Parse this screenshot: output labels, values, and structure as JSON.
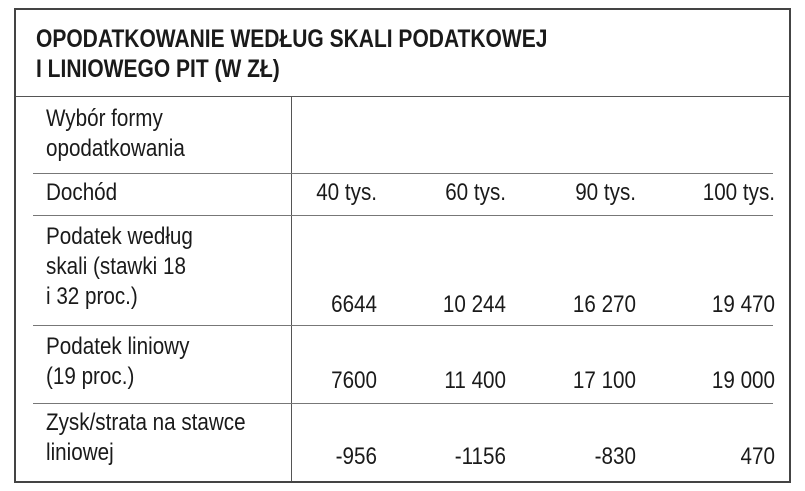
{
  "title": {
    "line1": "OPODATKOWANIE WEDŁUG SKALI PODATKOWEJ",
    "line2": "I LINIOWEGO PIT (W ZŁ)"
  },
  "rows": [
    {
      "label": "Wybór formy\nopodatkowania",
      "values": []
    },
    {
      "label": "Dochód",
      "values": [
        "40 tys.",
        "60 tys.",
        "90 tys.",
        "100 tys."
      ]
    },
    {
      "label": "Podatek według\nskali (stawki 18\ni 32 proc.)",
      "values": [
        "6644",
        "10 244",
        "16 270",
        "19 470"
      ]
    },
    {
      "label": "Podatek liniowy\n(19 proc.)",
      "values": [
        "7600",
        "11 400",
        "17 100",
        "19 000"
      ]
    },
    {
      "label": "Zysk/strata na stawce\nliniowej",
      "values": [
        "-956",
        "-1156",
        "-830",
        "470"
      ]
    }
  ]
}
